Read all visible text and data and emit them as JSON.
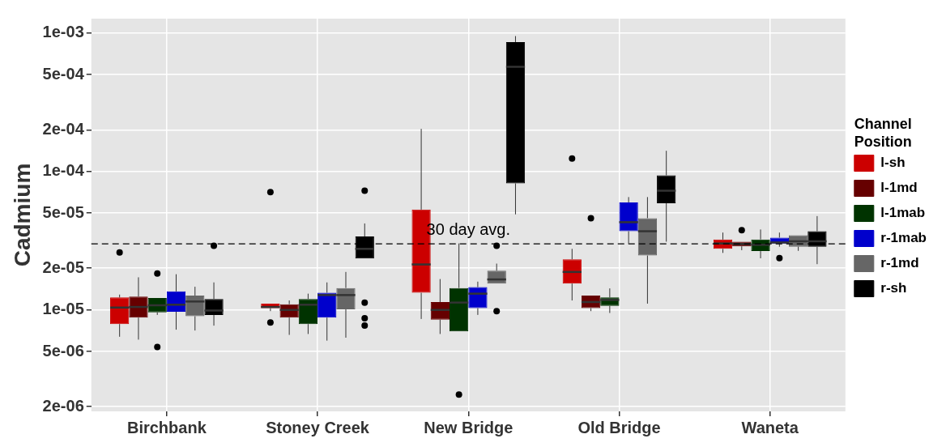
{
  "chart_data": {
    "type": "box",
    "ylabel": "Cadmium",
    "legend_title": "Channel Position",
    "legend": "right",
    "log": "y",
    "grid": true,
    "categories": [
      "Birchbank",
      "Stoney Creek",
      "New Bridge",
      "Old Bridge",
      "Waneta"
    ],
    "ylim": [
      1.85e-06,
      0.00127
    ],
    "yticks": [
      {
        "value": 2e-06,
        "label": "2e-06"
      },
      {
        "value": 5e-06,
        "label": "5e-06"
      },
      {
        "value": 1e-05,
        "label": "1e-05"
      },
      {
        "value": 2e-05,
        "label": "2e-05"
      },
      {
        "value": 5e-05,
        "label": "5e-05"
      },
      {
        "value": 0.0001,
        "label": "1e-04"
      },
      {
        "value": 0.0002,
        "label": "2e-04"
      },
      {
        "value": 0.0005,
        "label": "5e-04"
      },
      {
        "value": 0.001,
        "label": "1e-03"
      }
    ],
    "ref_lines": [
      {
        "axis": "y",
        "value": 3e-05,
        "label": "30 day avg.",
        "line_style": "dashed",
        "color": "#000000"
      }
    ],
    "series": [
      {
        "name": "l-sh",
        "color": "#cc0000",
        "boxes": [
          {
            "low": 6.4e-06,
            "q1": 7.9e-06,
            "median": 1.04e-05,
            "q3": 1.23e-05,
            "high": 1.29e-05,
            "outliers": [
              2.6e-05
            ]
          },
          {
            "low": 9.8e-06,
            "q1": 1.03e-05,
            "median": 1.05e-05,
            "q3": 1.11e-05,
            "high": 1.11e-05,
            "outliers": [
              7.1e-05,
              8.1e-06
            ]
          },
          {
            "low": 8.6e-06,
            "q1": 1.33e-05,
            "median": 2.13e-05,
            "q3": 5.3e-05,
            "high": 0.000203
          },
          {
            "low": 1.17e-05,
            "q1": 1.55e-05,
            "median": 1.88e-05,
            "q3": 2.32e-05,
            "high": 2.76e-05,
            "outliers": [
              0.000124
            ]
          },
          {
            "low": 2.58e-05,
            "q1": 2.76e-05,
            "median": 3.02e-05,
            "q3": 3.22e-05,
            "high": 3.62e-05
          }
        ]
      },
      {
        "name": "l-1md",
        "color": "#660000",
        "boxes": [
          {
            "low": 6.1e-06,
            "q1": 8.8e-06,
            "median": 1.05e-05,
            "q3": 1.25e-05,
            "high": 1.72e-05
          },
          {
            "low": 6.6e-06,
            "q1": 8.8e-06,
            "median": 1e-05,
            "q3": 1.1e-05,
            "high": 1.17e-05
          },
          {
            "low": 6.7e-06,
            "q1": 8.5e-06,
            "median": 1e-05,
            "q3": 1.14e-05,
            "high": 1.67e-05
          },
          {
            "low": 9.8e-06,
            "q1": 1.03e-05,
            "median": 1.14e-05,
            "q3": 1.27e-05,
            "high": 1.28e-05,
            "outliers": [
              4.6e-05
            ]
          },
          {
            "low": 2.7e-05,
            "q1": 2.88e-05,
            "median": 2.99e-05,
            "q3": 3.11e-05,
            "high": 3.11e-05,
            "outliers": [
              3.76e-05
            ]
          }
        ]
      },
      {
        "name": "l-1mab",
        "color": "#003300",
        "boxes": [
          {
            "low": 9.2e-06,
            "q1": 9.6e-06,
            "median": 1.08e-05,
            "q3": 1.22e-05,
            "high": 1.23e-05,
            "outliers": [
              1.83e-05,
              5.4e-06
            ]
          },
          {
            "low": 6.7e-06,
            "q1": 7.9e-06,
            "median": 1.09e-05,
            "q3": 1.2e-05,
            "high": 1.31e-05
          },
          {
            "low": 7e-06,
            "q1": 7e-06,
            "median": 1.13e-05,
            "q3": 1.44e-05,
            "high": 3.02e-05,
            "outliers": [
              2.45e-06
            ]
          },
          {
            "low": 9.5e-06,
            "q1": 1.07e-05,
            "median": 1.18e-05,
            "q3": 1.23e-05,
            "high": 1.43e-05
          },
          {
            "low": 2.36e-05,
            "q1": 2.66e-05,
            "median": 2.95e-05,
            "q3": 3.23e-05,
            "high": 3.81e-05
          }
        ]
      },
      {
        "name": "r-1mab",
        "color": "#0000cc",
        "boxes": [
          {
            "low": 7.2e-06,
            "q1": 9.7e-06,
            "median": 1.09e-05,
            "q3": 1.36e-05,
            "high": 1.81e-05
          },
          {
            "low": 6e-06,
            "q1": 8.8e-06,
            "median": 1.28e-05,
            "q3": 1.33e-05,
            "high": 1.58e-05
          },
          {
            "low": 9.2e-06,
            "q1": 1.03e-05,
            "median": 1.31e-05,
            "q3": 1.46e-05,
            "high": 1.6e-05
          },
          {
            "low": 3.02e-05,
            "q1": 3.7e-05,
            "median": 4.3e-05,
            "q3": 5.98e-05,
            "high": 6.53e-05
          },
          {
            "low": 2.86e-05,
            "q1": 3.02e-05,
            "median": 3.07e-05,
            "q3": 3.33e-05,
            "high": 3.62e-05,
            "outliers": [
              2.37e-05
            ]
          }
        ]
      },
      {
        "name": "r-1md",
        "color": "#666666",
        "boxes": [
          {
            "low": 7.1e-06,
            "q1": 9e-06,
            "median": 1.15e-05,
            "q3": 1.27e-05,
            "high": 1.47e-05
          },
          {
            "low": 6.3e-06,
            "q1": 1.01e-05,
            "median": 1.28e-05,
            "q3": 1.44e-05,
            "high": 1.88e-05
          },
          {
            "low": 1.55e-05,
            "q1": 1.55e-05,
            "median": 1.66e-05,
            "q3": 1.92e-05,
            "high": 2.16e-05,
            "outliers": [
              2.91e-05,
              9.8e-06
            ]
          },
          {
            "low": 1.11e-05,
            "q1": 2.47e-05,
            "median": 3.7e-05,
            "q3": 4.6e-05,
            "high": 6.53e-05
          },
          {
            "low": 2.67e-05,
            "q1": 2.86e-05,
            "median": 3.13e-05,
            "q3": 3.46e-05,
            "high": 3.55e-05
          }
        ]
      },
      {
        "name": "r-sh",
        "color": "#000000",
        "boxes": [
          {
            "low": 7.7e-06,
            "q1": 9.2e-06,
            "median": 9.9e-06,
            "q3": 1.2e-05,
            "high": 1.58e-05,
            "outliers": [
              2.91e-05
            ]
          },
          {
            "low": 2.31e-05,
            "q1": 2.35e-05,
            "median": 2.76e-05,
            "q3": 3.39e-05,
            "high": 4.21e-05,
            "outliers": [
              7.25e-05,
              1.13e-05,
              8.7e-06,
              7.7e-06
            ]
          },
          {
            "low": 4.9e-05,
            "q1": 8.2e-05,
            "median": 0.00057,
            "q3": 0.00086,
            "high": 0.00095
          },
          {
            "low": 3.11e-05,
            "q1": 5.9e-05,
            "median": 7.26e-05,
            "q3": 9.37e-05,
            "high": 0.000141
          },
          {
            "low": 2.14e-05,
            "q1": 2.86e-05,
            "median": 3.13e-05,
            "q3": 3.7e-05,
            "high": 4.76e-05
          }
        ]
      }
    ]
  }
}
